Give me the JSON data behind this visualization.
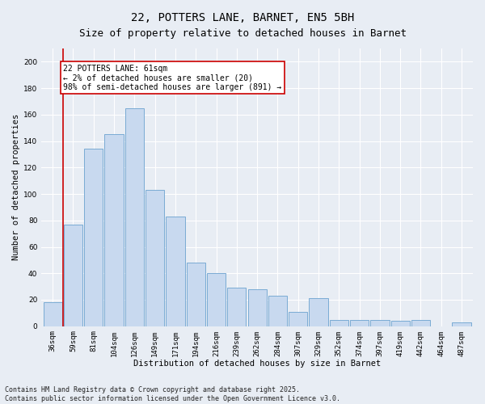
{
  "title": "22, POTTERS LANE, BARNET, EN5 5BH",
  "subtitle": "Size of property relative to detached houses in Barnet",
  "xlabel": "Distribution of detached houses by size in Barnet",
  "ylabel": "Number of detached properties",
  "categories": [
    "36sqm",
    "59sqm",
    "81sqm",
    "104sqm",
    "126sqm",
    "149sqm",
    "171sqm",
    "194sqm",
    "216sqm",
    "239sqm",
    "262sqm",
    "284sqm",
    "307sqm",
    "329sqm",
    "352sqm",
    "374sqm",
    "397sqm",
    "419sqm",
    "442sqm",
    "464sqm",
    "487sqm"
  ],
  "values": [
    18,
    77,
    134,
    145,
    165,
    103,
    83,
    48,
    40,
    29,
    28,
    23,
    11,
    21,
    5,
    5,
    5,
    4,
    5,
    0,
    3
  ],
  "bar_color": "#c8d9ef",
  "bar_edge_color": "#7aabd4",
  "vline_x": 0.5,
  "vline_color": "#cc0000",
  "annotation_text": "22 POTTERS LANE: 61sqm\n← 2% of detached houses are smaller (20)\n98% of semi-detached houses are larger (891) →",
  "annotation_box_color": "#ffffff",
  "annotation_box_edge_color": "#cc0000",
  "ylim": [
    0,
    210
  ],
  "yticks": [
    0,
    20,
    40,
    60,
    80,
    100,
    120,
    140,
    160,
    180,
    200
  ],
  "bg_color": "#e8edf4",
  "footer_text": "Contains HM Land Registry data © Crown copyright and database right 2025.\nContains public sector information licensed under the Open Government Licence v3.0.",
  "title_fontsize": 10,
  "subtitle_fontsize": 9,
  "axis_label_fontsize": 7.5,
  "tick_fontsize": 6.5,
  "annotation_fontsize": 7,
  "footer_fontsize": 6
}
